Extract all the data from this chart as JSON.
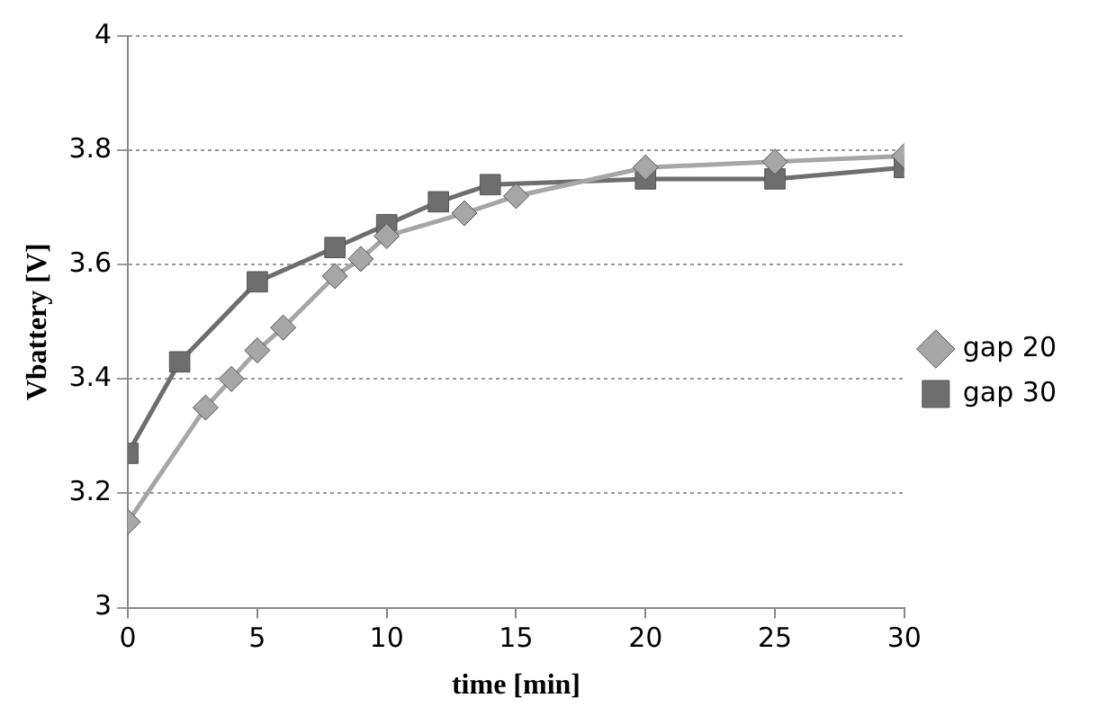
{
  "chart_data": {
    "type": "line",
    "xlabel": "time [min]",
    "ylabel": "Vbattery [V]",
    "xlim": [
      0,
      30
    ],
    "xticks": [
      0,
      5,
      10,
      15,
      20,
      25,
      30
    ],
    "ylim": [
      3,
      4
    ],
    "yticks": [
      3,
      3.2,
      3.4,
      3.6,
      3.8,
      4
    ],
    "grid": "y",
    "legend": "right",
    "series": [
      {
        "name": "gap 20",
        "color": "#a6a6a6",
        "marker": "diamond",
        "x": [
          0,
          3,
          4,
          5,
          6,
          8,
          9,
          10,
          13,
          15,
          20,
          25,
          30
        ],
        "values": [
          3.15,
          3.35,
          3.4,
          3.45,
          3.49,
          3.58,
          3.61,
          3.65,
          3.69,
          3.72,
          3.77,
          3.78,
          3.79
        ]
      },
      {
        "name": "gap 30",
        "color": "#6e6e6e",
        "marker": "square",
        "x": [
          0,
          2,
          5,
          8,
          10,
          12,
          14,
          20,
          25,
          30
        ],
        "values": [
          3.27,
          3.43,
          3.57,
          3.63,
          3.67,
          3.71,
          3.74,
          3.75,
          3.75,
          3.77
        ]
      }
    ]
  }
}
